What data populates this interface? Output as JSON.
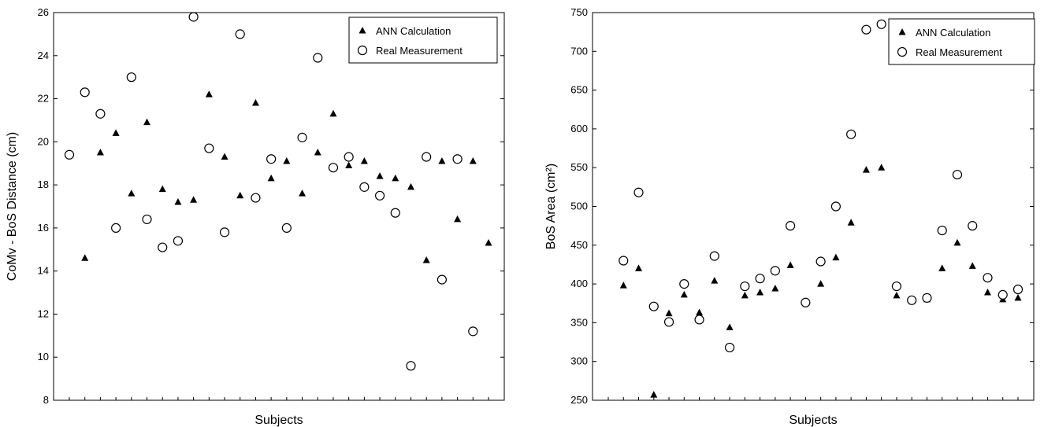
{
  "chart_data": [
    {
      "type": "scatter",
      "xlabel": "Subjects",
      "ylabel": "CoMv - BoS Distance (cm)",
      "ylim": [
        8,
        26
      ],
      "yticks": [
        8,
        10,
        12,
        14,
        16,
        18,
        20,
        22,
        24,
        26
      ],
      "xlim": [
        0,
        27
      ],
      "legend": {
        "position": "top-right"
      },
      "series": [
        {
          "name": "ANN Calculation",
          "marker": "filled-triangle",
          "x": [
            1,
            2,
            3,
            4,
            5,
            6,
            7,
            8,
            9,
            10,
            11,
            12,
            13,
            14,
            15,
            16,
            17,
            18,
            19,
            20,
            21,
            22,
            23,
            24,
            25,
            26,
            27
          ],
          "values": [
            14.6,
            19.5,
            20.4,
            17.6,
            20.9,
            17.8,
            17.2,
            17.3,
            22.2,
            19.3,
            17.5,
            21.8,
            18.3,
            19.1,
            17.6,
            19.5,
            21.3,
            18.9,
            19.1,
            18.4,
            18.3,
            17.9,
            14.5,
            19.1,
            16.4,
            19.1,
            15.3
          ]
        },
        {
          "name": "Real Measurement",
          "marker": "open-circle",
          "x": [
            0,
            1,
            2,
            3,
            4,
            5,
            6,
            7,
            8,
            9,
            10,
            11,
            12,
            13,
            14,
            15,
            16,
            17,
            18,
            19,
            20,
            21,
            22,
            23,
            24,
            25,
            26
          ],
          "values": [
            19.4,
            22.3,
            21.3,
            16.0,
            23.0,
            16.4,
            15.1,
            15.4,
            25.8,
            19.7,
            15.8,
            25.0,
            17.4,
            19.2,
            16.0,
            20.2,
            23.9,
            18.8,
            19.3,
            17.9,
            17.5,
            16.7,
            9.6,
            19.3,
            13.6,
            19.2,
            11.2
          ]
        }
      ]
    },
    {
      "type": "scatter",
      "xlabel": "Subjects",
      "ylabel": "BoS Area (cm²)",
      "ylim": [
        250,
        750
      ],
      "yticks": [
        250,
        300,
        350,
        400,
        450,
        500,
        550,
        600,
        650,
        700,
        750
      ],
      "xlim": [
        0,
        27
      ],
      "legend": {
        "position": "top-right"
      },
      "series": [
        {
          "name": "ANN Calculation",
          "marker": "filled-triangle",
          "x": [
            1,
            2,
            3,
            4,
            5,
            6,
            7,
            8,
            9,
            10,
            11,
            12,
            13,
            14,
            15,
            16,
            17,
            18,
            19,
            20,
            21,
            22,
            23,
            24,
            25,
            26,
            27
          ],
          "values": [
            398,
            420,
            257,
            362,
            386,
            363,
            404,
            344,
            385,
            389,
            394,
            424,
            376,
            400,
            434,
            479,
            547,
            550,
            385,
            378,
            380,
            420,
            453,
            423,
            389,
            380,
            382
          ]
        },
        {
          "name": "Real Measurement",
          "marker": "open-circle",
          "x": [
            1,
            2,
            3,
            4,
            5,
            6,
            7,
            8,
            9,
            10,
            11,
            12,
            13,
            14,
            15,
            16,
            17,
            18,
            19,
            20,
            21,
            22,
            23,
            24,
            25,
            26,
            27
          ],
          "values": [
            430,
            518,
            371,
            351,
            400,
            354,
            436,
            318,
            397,
            407,
            417,
            475,
            376,
            429,
            500,
            593,
            728,
            735,
            397,
            379,
            382,
            469,
            541,
            475,
            408,
            386,
            393
          ]
        }
      ]
    }
  ]
}
